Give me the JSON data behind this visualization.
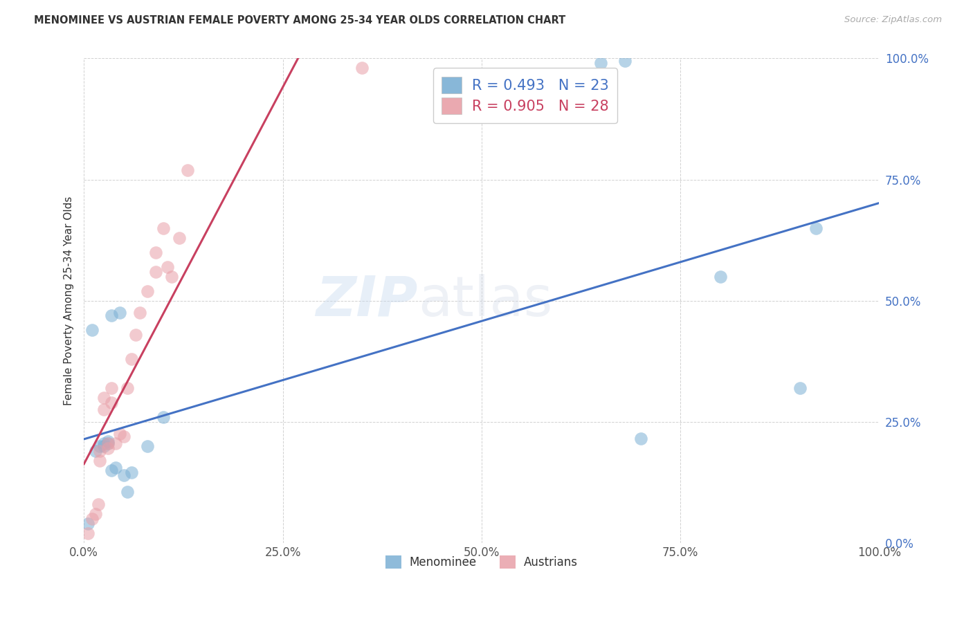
{
  "title": "MENOMINEE VS AUSTRIAN FEMALE POVERTY AMONG 25-34 YEAR OLDS CORRELATION CHART",
  "source": "Source: ZipAtlas.com",
  "ylabel": "Female Poverty Among 25-34 Year Olds",
  "blue_label": "Menominee",
  "pink_label": "Austrians",
  "blue_R": 0.493,
  "blue_N": 23,
  "pink_R": 0.905,
  "pink_N": 28,
  "blue_x": [
    0.5,
    1.0,
    1.5,
    2.0,
    2.5,
    2.5,
    3.0,
    3.0,
    3.5,
    3.5,
    4.0,
    4.5,
    5.0,
    5.5,
    6.0,
    8.0,
    10.0,
    65.0,
    68.0,
    70.0,
    80.0,
    90.0,
    92.0
  ],
  "blue_y": [
    4.0,
    44.0,
    19.0,
    20.0,
    20.0,
    20.5,
    20.5,
    21.0,
    47.0,
    15.0,
    15.5,
    47.5,
    14.0,
    10.5,
    14.5,
    20.0,
    26.0,
    99.0,
    99.5,
    21.5,
    55.0,
    32.0,
    65.0
  ],
  "pink_x": [
    0.5,
    1.0,
    1.5,
    1.8,
    2.0,
    2.0,
    2.5,
    2.5,
    3.0,
    3.0,
    3.5,
    3.5,
    4.0,
    4.5,
    5.0,
    5.5,
    6.0,
    6.5,
    7.0,
    8.0,
    9.0,
    9.0,
    10.0,
    10.5,
    11.0,
    12.0,
    13.0,
    35.0
  ],
  "pink_y": [
    2.0,
    5.0,
    6.0,
    8.0,
    17.0,
    19.0,
    27.5,
    30.0,
    19.5,
    20.5,
    29.0,
    32.0,
    20.5,
    22.5,
    22.0,
    32.0,
    38.0,
    43.0,
    47.5,
    52.0,
    56.0,
    60.0,
    65.0,
    57.0,
    55.0,
    63.0,
    77.0,
    98.0
  ],
  "blue_color": "#7bafd4",
  "pink_color": "#e8a0a8",
  "blue_line_color": "#4472c4",
  "pink_line_color": "#c84060",
  "bg_color": "#ffffff",
  "watermark_zip": "ZIP",
  "watermark_atlas": "atlas",
  "xlim": [
    0,
    100
  ],
  "ylim": [
    0,
    100
  ],
  "xticks": [
    0,
    25,
    50,
    75,
    100
  ],
  "yticks": [
    0,
    25,
    50,
    75,
    100
  ]
}
